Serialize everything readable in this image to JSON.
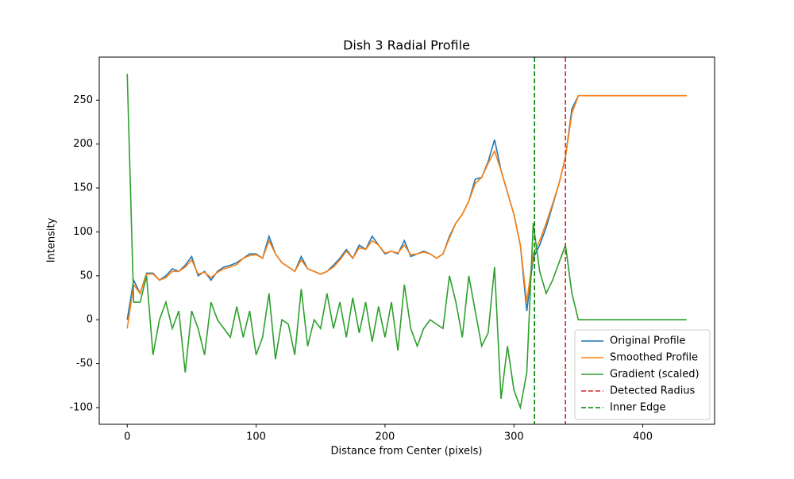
{
  "chart_data": {
    "type": "line",
    "title": "Dish 3 Radial Profile",
    "xlabel": "Distance from Center (pixels)",
    "ylabel": "Intensity",
    "x": [
      0,
      5,
      10,
      15,
      20,
      25,
      30,
      35,
      40,
      45,
      50,
      55,
      60,
      65,
      70,
      75,
      80,
      85,
      90,
      95,
      100,
      105,
      110,
      115,
      120,
      125,
      130,
      135,
      140,
      145,
      150,
      155,
      160,
      165,
      170,
      175,
      180,
      185,
      190,
      195,
      200,
      205,
      210,
      215,
      220,
      225,
      230,
      235,
      240,
      245,
      250,
      255,
      260,
      265,
      270,
      275,
      280,
      285,
      290,
      295,
      300,
      305,
      310,
      315,
      320,
      325,
      330,
      335,
      340,
      345,
      350,
      355,
      360,
      365,
      370,
      375,
      380,
      385,
      390,
      395,
      400,
      405,
      410,
      415,
      420,
      425,
      430,
      434
    ],
    "series": [
      {
        "name": "Original Profile",
        "color": "#1f77b4",
        "values": [
          0,
          45,
          30,
          53,
          53,
          45,
          50,
          58,
          55,
          62,
          72,
          50,
          55,
          45,
          55,
          60,
          62,
          65,
          70,
          75,
          75,
          70,
          95,
          75,
          65,
          60,
          55,
          72,
          58,
          55,
          52,
          55,
          62,
          70,
          80,
          70,
          85,
          80,
          95,
          85,
          75,
          78,
          75,
          90,
          72,
          75,
          78,
          75,
          70,
          75,
          95,
          110,
          120,
          135,
          160,
          162,
          180,
          205,
          170,
          145,
          120,
          85,
          10,
          70,
          85,
          105,
          130,
          155,
          185,
          240,
          255,
          255,
          255,
          255,
          255,
          255,
          255,
          255,
          255,
          255,
          255,
          255,
          255,
          255,
          255,
          255,
          255,
          255
        ]
      },
      {
        "name": "Smoothed Profile",
        "color": "#ff7f0e",
        "values": [
          -10,
          40,
          30,
          52,
          52,
          45,
          48,
          55,
          55,
          60,
          68,
          52,
          54,
          48,
          54,
          58,
          60,
          63,
          70,
          73,
          74,
          70,
          90,
          75,
          65,
          60,
          55,
          68,
          58,
          55,
          52,
          55,
          60,
          68,
          78,
          70,
          82,
          80,
          90,
          85,
          76,
          78,
          76,
          85,
          74,
          75,
          77,
          75,
          70,
          75,
          93,
          110,
          120,
          135,
          155,
          162,
          178,
          192,
          170,
          145,
          120,
          85,
          20,
          75,
          90,
          110,
          132,
          155,
          185,
          235,
          255,
          255,
          255,
          255,
          255,
          255,
          255,
          255,
          255,
          255,
          255,
          255,
          255,
          255,
          255,
          255,
          255,
          255
        ]
      },
      {
        "name": "Gradient (scaled)",
        "color": "#2ca02c",
        "values": [
          280,
          20,
          20,
          50,
          -40,
          0,
          20,
          -10,
          10,
          -60,
          10,
          -10,
          -40,
          20,
          0,
          -10,
          -20,
          15,
          -20,
          10,
          -40,
          -20,
          30,
          -45,
          0,
          -5,
          -40,
          35,
          -30,
          0,
          -10,
          30,
          -10,
          20,
          -20,
          25,
          -15,
          20,
          -25,
          15,
          -20,
          20,
          -35,
          40,
          -10,
          -30,
          -10,
          0,
          -5,
          -10,
          50,
          20,
          -20,
          50,
          10,
          -30,
          -15,
          60,
          -90,
          -30,
          -80,
          -100,
          -60,
          110,
          55,
          30,
          45,
          65,
          85,
          30,
          0,
          0,
          0,
          0,
          0,
          0,
          0,
          0,
          0,
          0,
          0,
          0,
          0,
          0,
          0,
          0,
          0,
          0
        ]
      }
    ],
    "vlines": [
      {
        "name": "Detected Radius",
        "color": "#d62728",
        "x": 340
      },
      {
        "name": "Inner Edge",
        "color": "#008000",
        "x": 316
      }
    ],
    "xlim": [
      -21.7,
      455.7
    ],
    "ylim": [
      -119,
      299
    ],
    "xticks": [
      0,
      100,
      200,
      300,
      400
    ],
    "yticks": [
      -100,
      -50,
      0,
      50,
      100,
      150,
      200,
      250
    ],
    "legend": "lower right"
  }
}
